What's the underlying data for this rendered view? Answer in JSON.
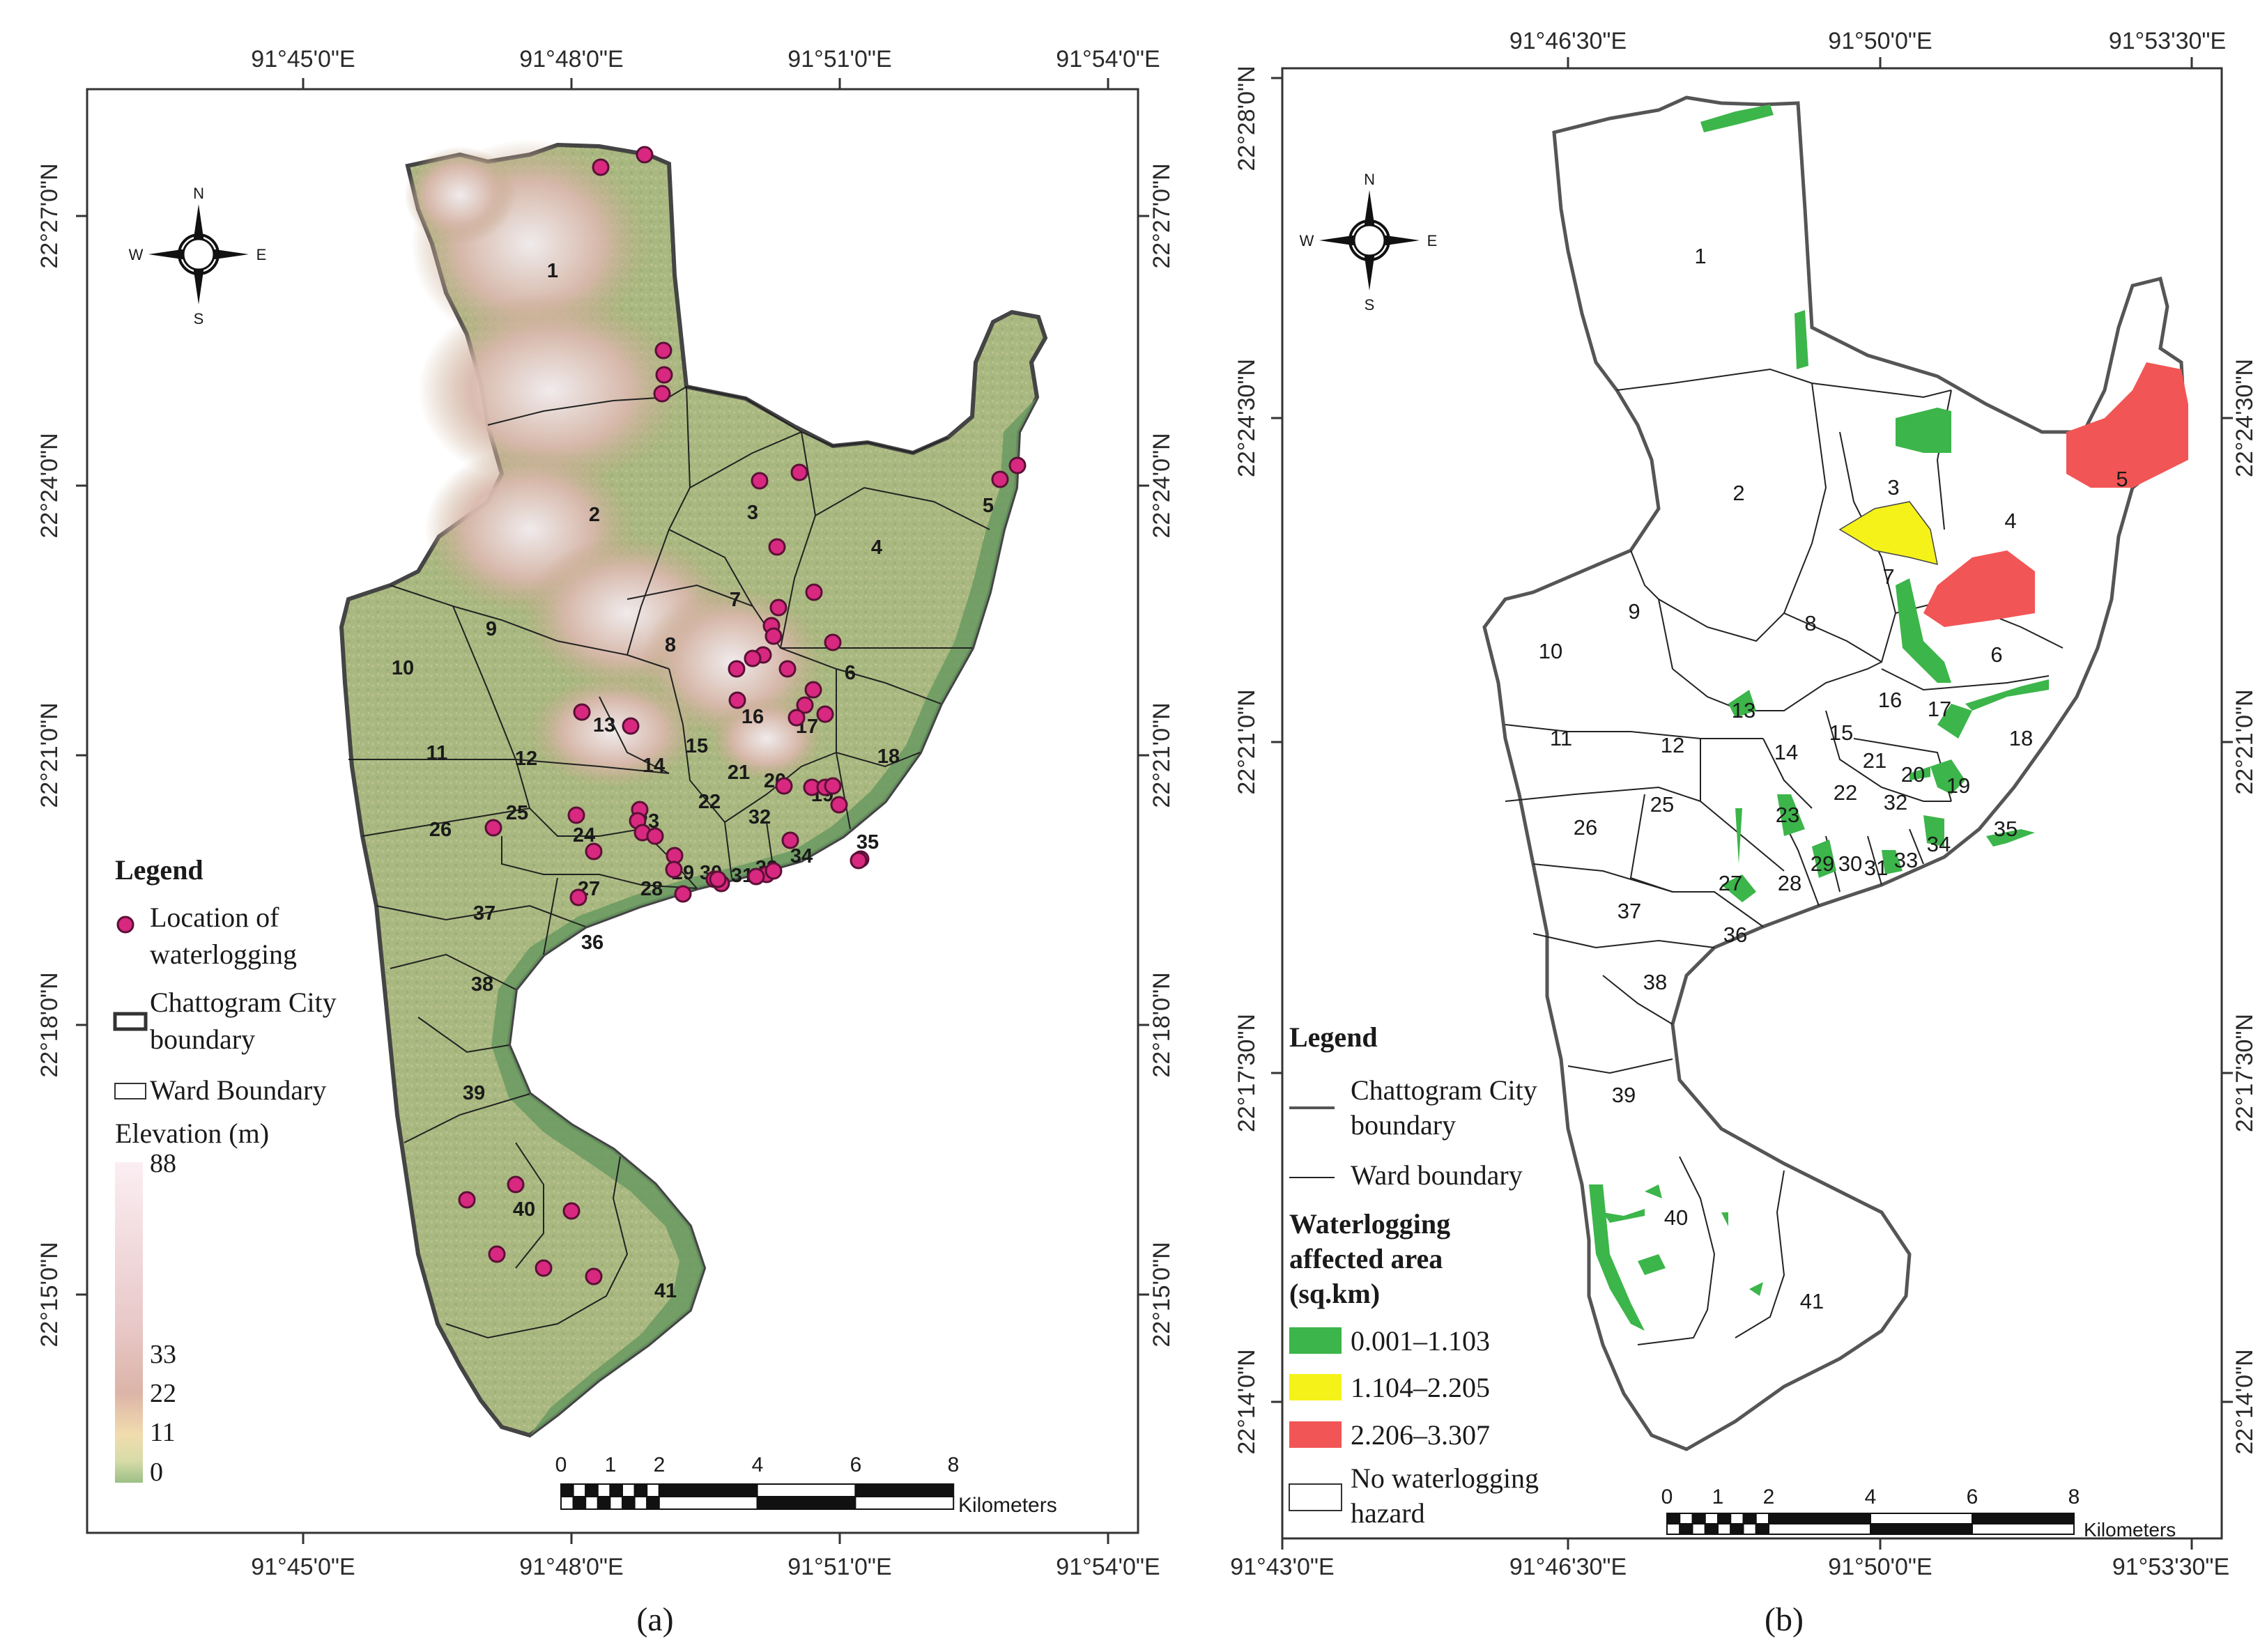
{
  "panel_a": {
    "label": "(a)",
    "lon_ticks": [
      "91°45'0\"E",
      "91°48'0\"E",
      "91°51'0\"E",
      "91°54'0\"E"
    ],
    "lat_ticks": [
      "22°27'0\"N",
      "22°24'0\"N",
      "22°21'0\"N",
      "22°18'0\"N",
      "22°15'0\"N"
    ],
    "compass": {
      "n": "N",
      "s": "S",
      "e": "E",
      "w": "W"
    },
    "legend": {
      "title": "Legend",
      "waterlogging_1": "Location of",
      "waterlogging_2": "waterlogging",
      "city_1": "Chattogram City",
      "city_2": "boundary",
      "ward": "Ward Boundary",
      "elevation_title": "Elevation (m)",
      "elev_labels": [
        "88",
        "33",
        "22",
        "11",
        "0"
      ]
    },
    "scale": {
      "ticks": [
        "0",
        "1",
        "2",
        "4",
        "6",
        "8"
      ],
      "unit": "Kilometers"
    },
    "wards": [
      "1",
      "2",
      "3",
      "4",
      "5",
      "6",
      "7",
      "8",
      "9",
      "10",
      "11",
      "12",
      "13",
      "14",
      "15",
      "16",
      "17",
      "18",
      "19",
      "20",
      "21",
      "22",
      "23",
      "24",
      "25",
      "26",
      "27",
      "28",
      "29",
      "30",
      "31",
      "32",
      "33",
      "34",
      "35",
      "36",
      "37",
      "38",
      "39",
      "40",
      "41"
    ]
  },
  "panel_b": {
    "label": "(b)",
    "lon_ticks_top": [
      "91°46'30\"E",
      "91°50'0\"E",
      "91°53'30\"E"
    ],
    "lon_ticks_bottom": [
      "91°43'0\"E",
      "91°46'30\"E",
      "91°50'0\"E",
      "91°53'30\"E"
    ],
    "lat_ticks_left": [
      "22°28'0\"N",
      "22°24'30\"N",
      "22°21'0\"N",
      "22°17'30\"N",
      "22°14'0\"N"
    ],
    "lat_ticks_right": [
      "22°24'30\"N",
      "22°21'0\"N",
      "22°17'30\"N",
      "22°14'0\"N"
    ],
    "compass": {
      "n": "N",
      "s": "S",
      "e": "E",
      "w": "W"
    },
    "legend": {
      "title": "Legend",
      "city_1": "Chattogram City",
      "city_2": "boundary",
      "ward": "Ward boundary",
      "affected_1": "Waterlogging",
      "affected_2": "affected area",
      "affected_3": "(sq.km)",
      "class_1": "0.001–1.103",
      "class_2": "1.104–2.205",
      "class_3": "2.206–3.307",
      "none_1": "No waterlogging",
      "none_2": "hazard"
    },
    "class_colors": {
      "low": "#3cb54a",
      "mid": "#f5f21a",
      "high": "#f25555"
    },
    "scale": {
      "ticks": [
        "0",
        "1",
        "2",
        "4",
        "6",
        "8"
      ],
      "unit": "Kilometers"
    },
    "wards": [
      "1",
      "2",
      "3",
      "4",
      "5",
      "6",
      "7",
      "8",
      "9",
      "10",
      "11",
      "12",
      "13",
      "14",
      "15",
      "16",
      "17",
      "18",
      "19",
      "20",
      "21",
      "22",
      "23",
      "25",
      "26",
      "27",
      "28",
      "29",
      "30",
      "31",
      "32",
      "33",
      "34",
      "35",
      "36",
      "37",
      "38",
      "39",
      "40",
      "41"
    ]
  }
}
